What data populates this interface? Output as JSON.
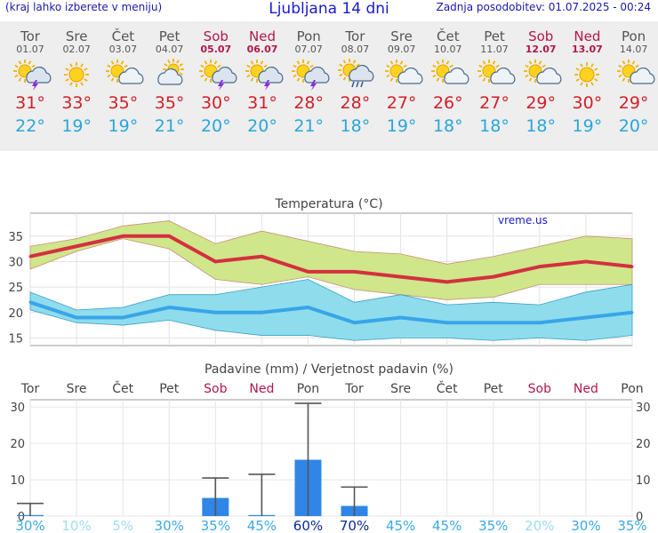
{
  "header": {
    "menu_note": "(kraj lahko izberete v meniju)",
    "title": "Ljubljana 14 dni",
    "updated": "Zadnja posodobitev: 01.07.2025 - 00:24"
  },
  "days": [
    {
      "name": "Tor",
      "date": "01.07",
      "weekend": false,
      "icon": "sun-cloud-thunder-icon",
      "tmax": "31°",
      "tmin": "22°"
    },
    {
      "name": "Sre",
      "date": "02.07",
      "weekend": false,
      "icon": "sun-icon",
      "tmax": "33°",
      "tmin": "19°"
    },
    {
      "name": "Čet",
      "date": "03.07",
      "weekend": false,
      "icon": "sun-cloud-icon",
      "tmax": "35°",
      "tmin": "19°"
    },
    {
      "name": "Pet",
      "date": "04.07",
      "weekend": false,
      "icon": "cloud-sun-icon",
      "tmax": "35°",
      "tmin": "21°"
    },
    {
      "name": "Sob",
      "date": "05.07",
      "weekend": true,
      "icon": "sun-cloud-thunder-icon",
      "tmax": "30°",
      "tmin": "20°"
    },
    {
      "name": "Ned",
      "date": "06.07",
      "weekend": true,
      "icon": "sun-cloud-thunder-icon",
      "tmax": "31°",
      "tmin": "20°"
    },
    {
      "name": "Pon",
      "date": "07.07",
      "weekend": false,
      "icon": "sun-cloud-thunder-icon",
      "tmax": "28°",
      "tmin": "21°"
    },
    {
      "name": "Tor",
      "date": "08.07",
      "weekend": false,
      "icon": "sun-cloud-rain-icon",
      "tmax": "28°",
      "tmin": "18°"
    },
    {
      "name": "Sre",
      "date": "09.07",
      "weekend": false,
      "icon": "sun-cloud-icon",
      "tmax": "27°",
      "tmin": "19°"
    },
    {
      "name": "Čet",
      "date": "10.07",
      "weekend": false,
      "icon": "sun-cloud-icon",
      "tmax": "26°",
      "tmin": "18°"
    },
    {
      "name": "Pet",
      "date": "11.07",
      "weekend": false,
      "icon": "sun-cloud-icon",
      "tmax": "27°",
      "tmin": "18°"
    },
    {
      "name": "Sob",
      "date": "12.07",
      "weekend": true,
      "icon": "sun-cloud-icon",
      "tmax": "29°",
      "tmin": "18°"
    },
    {
      "name": "Ned",
      "date": "13.07",
      "weekend": true,
      "icon": "sun-icon",
      "tmax": "30°",
      "tmin": "19°"
    },
    {
      "name": "Pon",
      "date": "14.07",
      "weekend": false,
      "icon": "sun-cloud-icon",
      "tmax": "29°",
      "tmin": "20°"
    }
  ],
  "colors": {
    "weekend": "#b3164a",
    "weekday": "#555555",
    "tmax_line": "#d43040",
    "tmax_band": "#cfe68a",
    "tmin_line": "#39a5e8",
    "tmin_band": "#8fdcec",
    "overlap_band": "#8fd08a",
    "precip_bar": "#2f86e6",
    "whisker": "#555555"
  },
  "chart_data": [
    {
      "type": "line",
      "title": "Temperatura (°C)",
      "watermark": "vreme.us",
      "ylim": [
        13.5,
        39.5
      ],
      "yticks": [
        15,
        20,
        25,
        30,
        35
      ],
      "grid": true,
      "x": [
        0,
        1,
        2,
        3,
        4,
        5,
        6,
        7,
        8,
        9,
        10,
        11,
        12,
        13
      ],
      "series": [
        {
          "role": "tmax",
          "values": [
            31,
            33,
            35,
            35,
            30,
            31,
            28,
            28,
            27,
            26,
            27,
            29,
            30,
            29
          ]
        },
        {
          "role": "tmax_upper",
          "values": [
            33,
            34.5,
            37,
            38,
            33.5,
            36,
            34,
            32,
            31.5,
            29.5,
            31,
            33,
            35,
            34.5
          ]
        },
        {
          "role": "tmax_lower",
          "values": [
            28.5,
            32,
            34.5,
            32.5,
            26.5,
            25.5,
            27,
            24.5,
            23.5,
            22.5,
            23,
            25.5,
            25.5,
            25.5
          ]
        },
        {
          "role": "tmin",
          "values": [
            22,
            19,
            19,
            21,
            20,
            20,
            21,
            18,
            19,
            18,
            18,
            18,
            19,
            20
          ]
        },
        {
          "role": "tmin_upper",
          "values": [
            24,
            20.5,
            21,
            23.5,
            23.5,
            25,
            26.5,
            22,
            23.5,
            21.5,
            22,
            21.5,
            24,
            25.5
          ]
        },
        {
          "role": "tmin_lower",
          "values": [
            20.5,
            18,
            17.5,
            18.5,
            16.5,
            15.5,
            15.5,
            14.5,
            15,
            15,
            14.5,
            15,
            14.5,
            15.5
          ]
        }
      ]
    },
    {
      "type": "bar",
      "title": "Padavine (mm) / Verjetnost padavin (%)",
      "ylim": [
        0,
        32
      ],
      "yticks": [
        0,
        10,
        20,
        30
      ],
      "categories": [
        "Tor",
        "Sre",
        "Čet",
        "Pet",
        "Sob",
        "Ned",
        "Pon",
        "Tor",
        "Sre",
        "Čet",
        "Pet",
        "Sob",
        "Ned",
        "Pon"
      ],
      "weekend": [
        false,
        false,
        false,
        false,
        true,
        true,
        false,
        false,
        false,
        false,
        false,
        true,
        true,
        false
      ],
      "values": [
        0.1,
        0,
        0,
        0,
        5,
        0.2,
        15.5,
        2.8,
        0,
        0,
        0,
        0,
        0,
        0
      ],
      "whisker_max": [
        3.5,
        0,
        0,
        0,
        10.5,
        11.5,
        31,
        8,
        0,
        0,
        0,
        0,
        0,
        0
      ],
      "probability": [
        "30%",
        "10%",
        "5%",
        "30%",
        "35%",
        "45%",
        "60%",
        "70%",
        "45%",
        "45%",
        "35%",
        "20%",
        "30%",
        "35%"
      ],
      "probability_colors": [
        "#3aa9e6",
        "#9ddcf4",
        "#9ddcf4",
        "#3aa9e6",
        "#3aa9e6",
        "#3aa9e6",
        "#0a2a9c",
        "#0a2a9c",
        "#3aa9e6",
        "#3aa9e6",
        "#3aa9e6",
        "#9ddcf4",
        "#3aa9e6",
        "#3aa9e6"
      ]
    }
  ]
}
